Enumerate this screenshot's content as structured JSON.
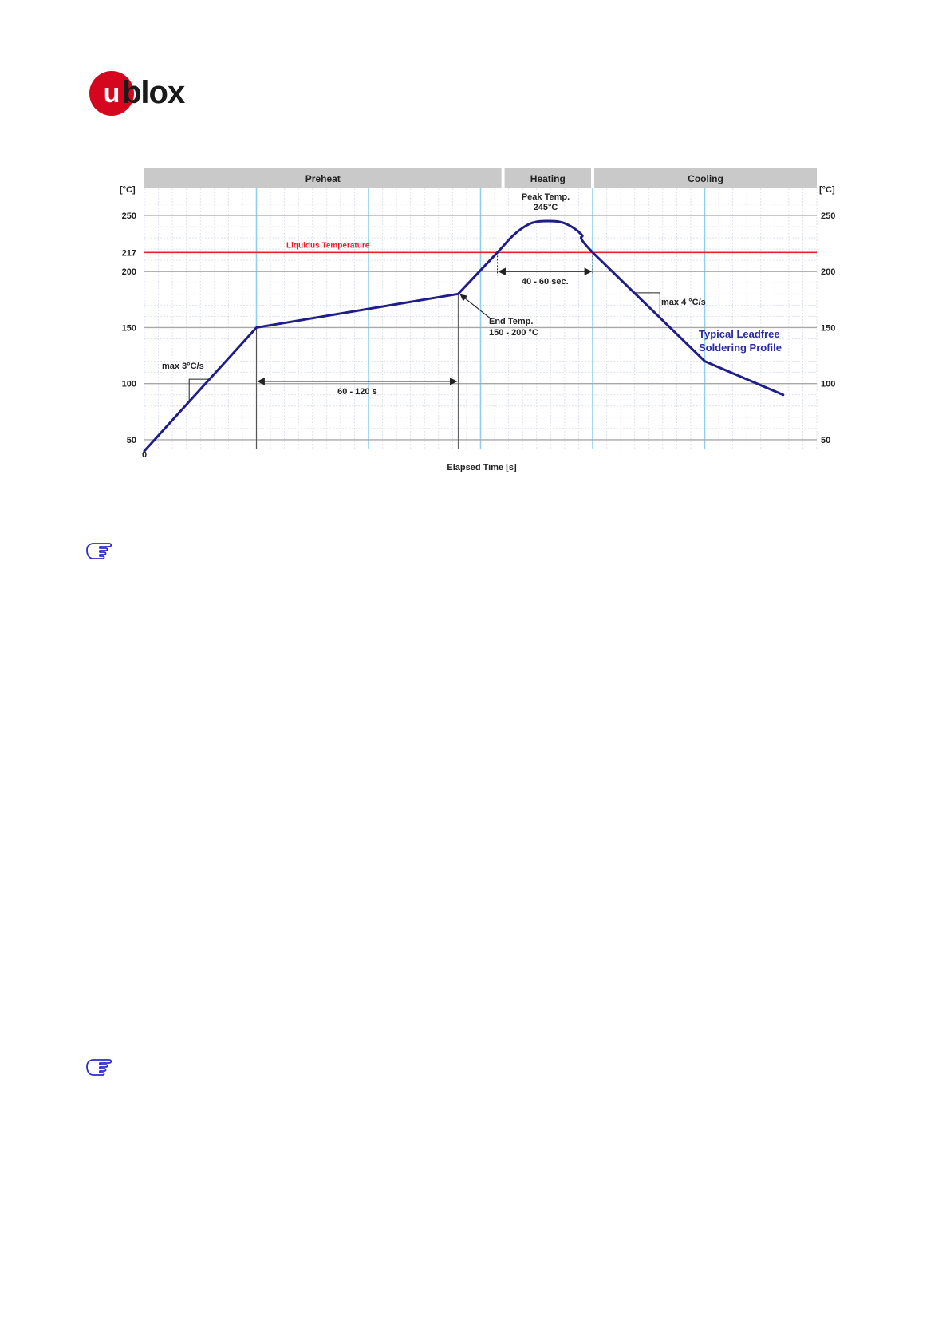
{
  "brand": {
    "logo_letter": "u",
    "logo_text": "blox",
    "logo_color": "#d4071e"
  },
  "chart_data": {
    "type": "line",
    "title": "",
    "xlabel": "Elapsed Time [s]",
    "ylabel": "[°C]",
    "ylabel_right": "[°C]",
    "x_tick_labels": [
      "0"
    ],
    "y_ticks": [
      50,
      100,
      150,
      200,
      217,
      250
    ],
    "y_tick_labels_left": [
      "50",
      "100",
      "150",
      "200",
      "217",
      "250"
    ],
    "y_tick_labels_right": [
      "50",
      "100",
      "150",
      "200",
      "250"
    ],
    "ylim": [
      40,
      270
    ],
    "grid": true,
    "phases": [
      {
        "label": "Preheat",
        "x_start": 0,
        "x_end": 6.4
      },
      {
        "label": "Heating",
        "x_start": 6.4,
        "x_end": 8.0
      },
      {
        "label": "Cooling",
        "x_start": 8.0,
        "x_end": 12.0
      }
    ],
    "reference_lines": [
      {
        "label": "Liquidus Temperature",
        "y": 217,
        "color": "#e8202a"
      }
    ],
    "series": [
      {
        "name": "Typical Leadfree Soldering Profile",
        "color": "#1f1d8a",
        "points": [
          [
            0.0,
            40
          ],
          [
            2.0,
            150
          ],
          [
            5.6,
            180
          ],
          [
            6.3,
            217
          ],
          [
            6.6,
            233
          ],
          [
            6.9,
            243
          ],
          [
            7.2,
            245
          ],
          [
            7.5,
            243
          ],
          [
            7.8,
            233
          ],
          [
            8.0,
            217
          ],
          [
            10.0,
            120
          ],
          [
            11.4,
            90
          ]
        ]
      }
    ],
    "annotations": {
      "peak": "Peak Temp.\n245°C",
      "end_temp": "End Temp.\n150 - 200 °C",
      "preheat_duration": "60 - 120 s",
      "above_liquidus": "40 - 60 sec.",
      "ramp_up": "max 3°C/s",
      "ramp_down": "max 4 °C/s"
    }
  },
  "notes": [
    {
      "icon": "hand-pointing-icon"
    },
    {
      "icon": "hand-pointing-icon"
    }
  ]
}
